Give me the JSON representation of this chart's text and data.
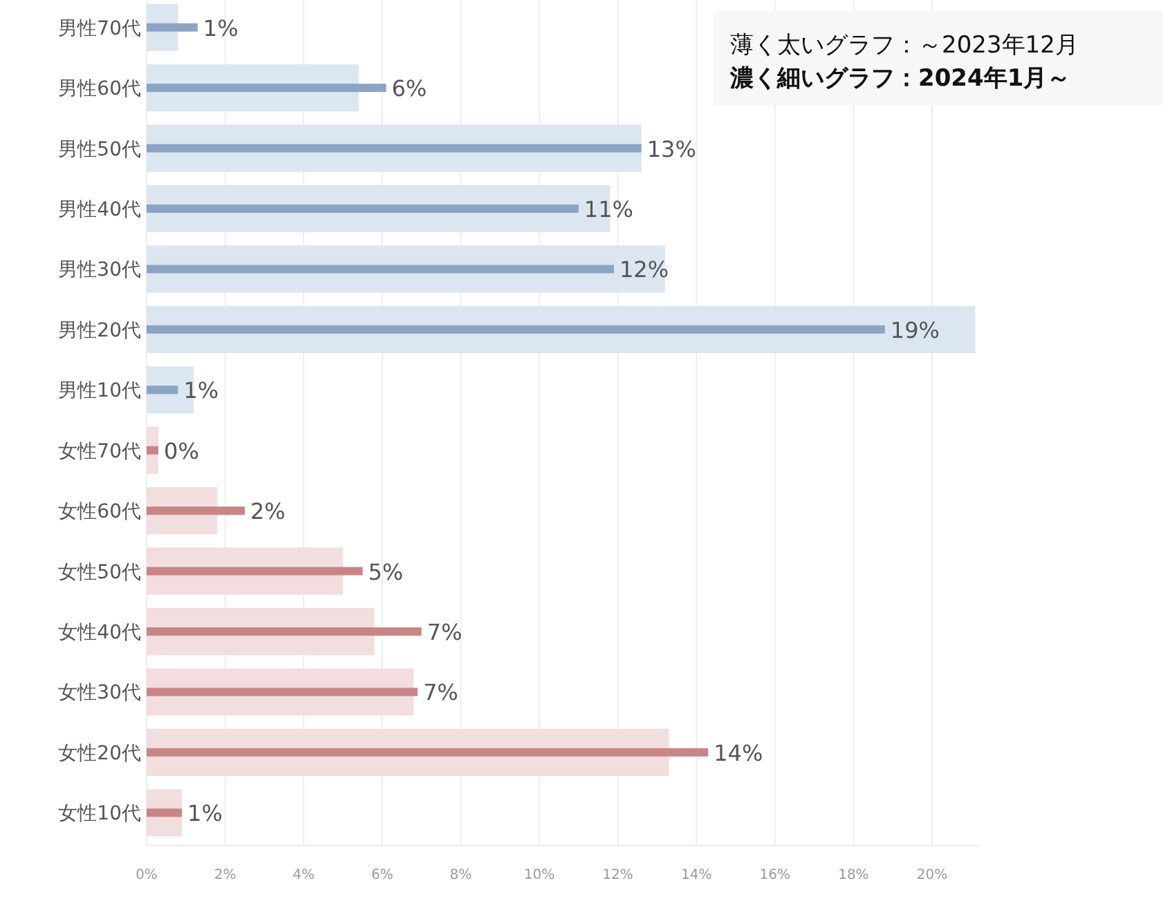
{
  "chart_data": {
    "type": "bar",
    "orientation": "horizontal",
    "categories": [
      "男性70代",
      "男性60代",
      "男性50代",
      "男性40代",
      "男性30代",
      "男性20代",
      "男性10代",
      "女性70代",
      "女性60代",
      "女性50代",
      "女性40代",
      "女性30代",
      "女性20代",
      "女性10代"
    ],
    "series": [
      {
        "colors": [
          "#dce6f0",
          "#dce6f0",
          "#dce6f0",
          "#dce6f0",
          "#dce6f0",
          "#dce6f0",
          "#dce6f0",
          "#f2dede",
          "#f2dede",
          "#f2dede",
          "#f2dede",
          "#f2dede",
          "#f2dede",
          "#f2dede"
        ],
        "values": [
          0.8,
          5.4,
          12.6,
          11.8,
          13.2,
          21.1,
          1.2,
          0.3,
          1.8,
          5.0,
          5.8,
          6.8,
          13.3,
          0.9
        ]
      },
      {
        "colors": [
          "#8aa4c4",
          "#8aa4c4",
          "#8aa4c4",
          "#8aa4c4",
          "#8aa4c4",
          "#8aa4c4",
          "#8aa4c4",
          "#c98585",
          "#c98585",
          "#c98585",
          "#c98585",
          "#c98585",
          "#c98585",
          "#c98585"
        ],
        "values": [
          1.3,
          6.1,
          12.6,
          11.0,
          11.9,
          18.8,
          0.8,
          0.3,
          2.5,
          5.5,
          7.0,
          6.9,
          14.3,
          0.9
        ],
        "value_labels": [
          "1%",
          "6%",
          "13%",
          "11%",
          "12%",
          "19%",
          "1%",
          "0%",
          "2%",
          "5%",
          "7%",
          "7%",
          "14%",
          "1%"
        ]
      }
    ],
    "xlim": [
      0,
      21.2
    ],
    "xticks": [
      {
        "value": 0,
        "label": "0%"
      },
      {
        "value": 2,
        "label": "2%"
      },
      {
        "value": 4,
        "label": "4%"
      },
      {
        "value": 6,
        "label": "6%"
      },
      {
        "value": 8,
        "label": "8%"
      },
      {
        "value": 10,
        "label": "10%"
      },
      {
        "value": 12,
        "label": "12%"
      },
      {
        "value": 14,
        "label": "14%"
      },
      {
        "value": 16,
        "label": "16%"
      },
      {
        "value": 18,
        "label": "18%"
      },
      {
        "value": 20,
        "label": "20%"
      }
    ],
    "grid": "x",
    "annotations": [
      "薄く太いグラフ：～2023年12月",
      "濃く細いグラフ：2024年1月～"
    ]
  }
}
